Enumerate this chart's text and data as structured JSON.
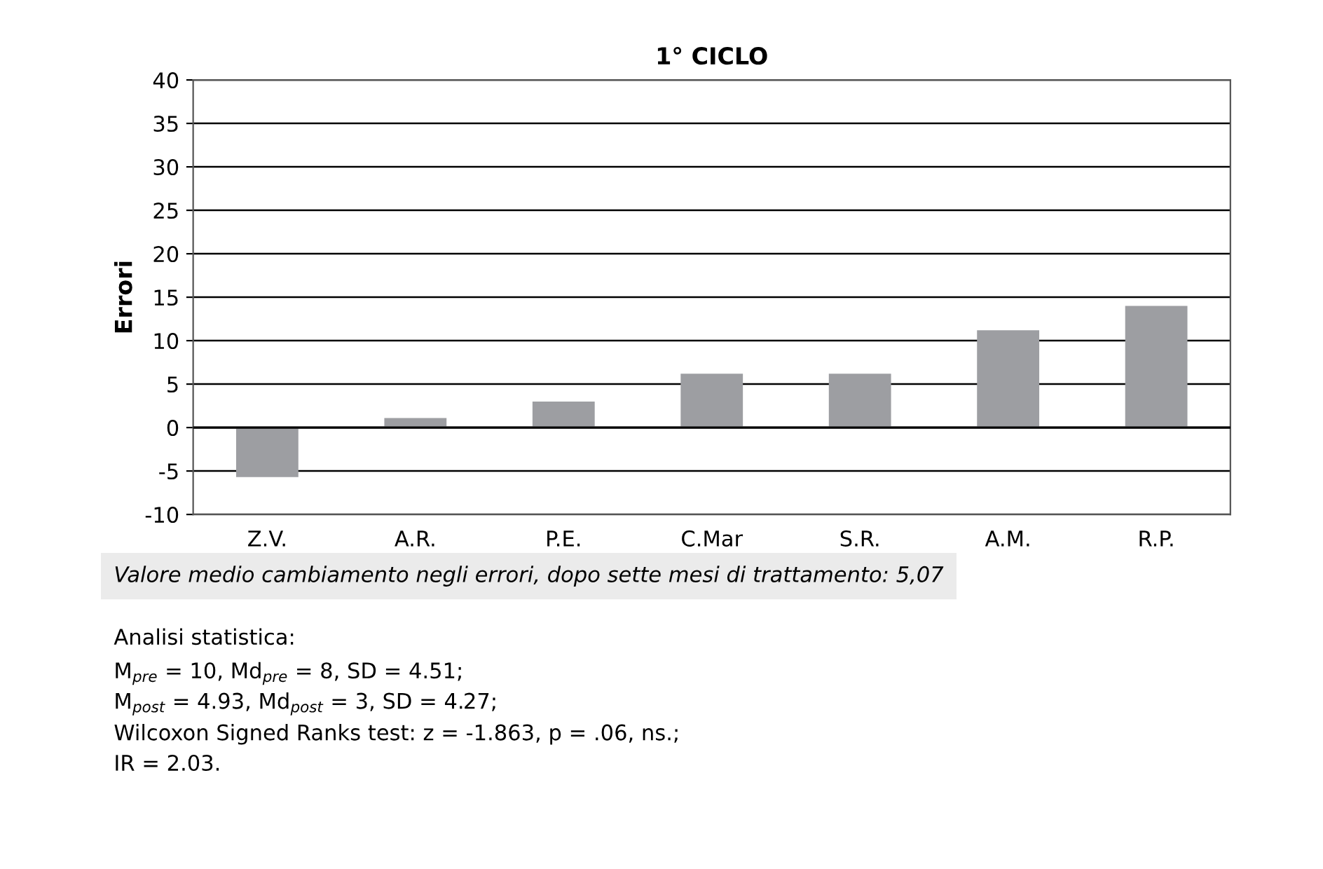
{
  "chart_data": {
    "type": "bar",
    "title": "1° CICLO",
    "ylabel": "Errori",
    "categories": [
      "Z.V.",
      "A.R.",
      "P.E.",
      "C.Mar",
      "S.R.",
      "A.M.",
      "R.P."
    ],
    "values": [
      -5.7,
      1.1,
      3,
      6.2,
      6.2,
      11.2,
      14
    ],
    "color": "#9d9ea2",
    "ylim": [
      -10,
      40
    ],
    "yticks": [
      -10,
      -5,
      0,
      5,
      10,
      15,
      20,
      25,
      30,
      35,
      40
    ],
    "grid": "y",
    "annotations": [
      "Valore medio cambiamento negli errori, dopo sette mesi di trattamento: 5,07",
      "Analisi statistica:",
      "M$_{pre}$ = 10, Md$_{pre}$ = 8, SD = 4.51;",
      "M$_{post}$ = 4.93, Md$_{post}$ = 3, SD = 4.27;",
      "Wilcoxon Signed Ranks test: z = -1.863, p = .06, ns.;",
      "IR = 2.03."
    ]
  }
}
